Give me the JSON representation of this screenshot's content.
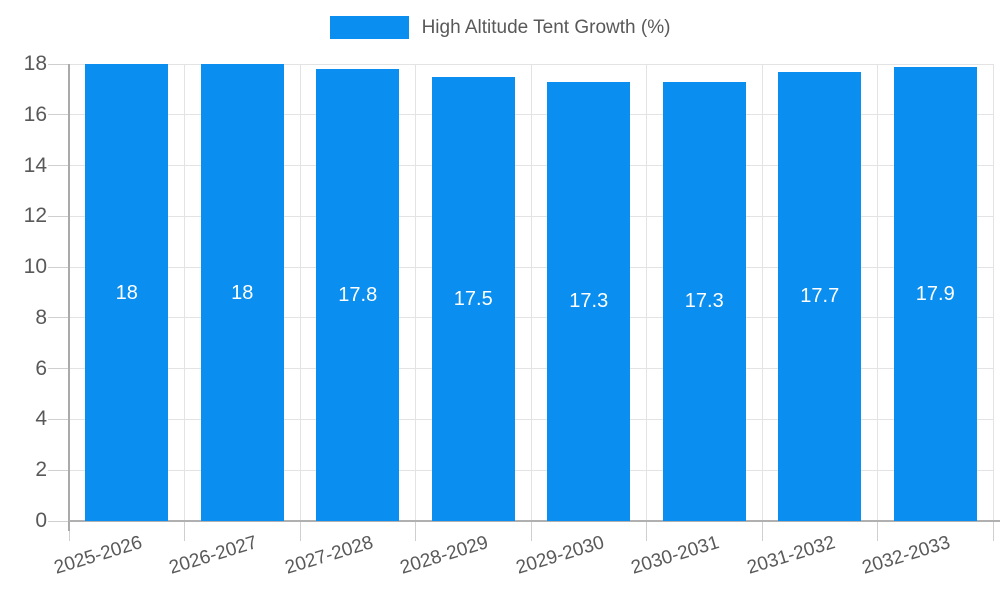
{
  "chart_data": {
    "type": "bar",
    "title": "High Altitude Tent Growth (%)",
    "categories": [
      "2025-2026",
      "2026-2027",
      "2027-2028",
      "2028-2029",
      "2029-2030",
      "2030-2031",
      "2031-2032",
      "2032-2033"
    ],
    "values": [
      18,
      18,
      17.8,
      17.5,
      17.3,
      17.3,
      17.7,
      17.9
    ],
    "value_labels": [
      "18",
      "18",
      "17.8",
      "17.5",
      "17.3",
      "17.3",
      "17.7",
      "17.9"
    ],
    "xlabel": "",
    "ylabel": "",
    "ylim": [
      0,
      18
    ],
    "ytick_step": 2,
    "ytick_labels": [
      "0",
      "2",
      "4",
      "6",
      "8",
      "10",
      "12",
      "14",
      "16",
      "18"
    ],
    "grid": true,
    "legend_position": "top-center",
    "legend_entries": [
      "High Altitude Tent Growth (%)"
    ]
  },
  "colors": {
    "bar": "#0a8ff0",
    "grid": "#e3e3e3",
    "tick": "#cfcfcf",
    "axis": "#b0b0b0",
    "text": "#595959",
    "value_label": "#ffffff",
    "background": "#ffffff"
  }
}
